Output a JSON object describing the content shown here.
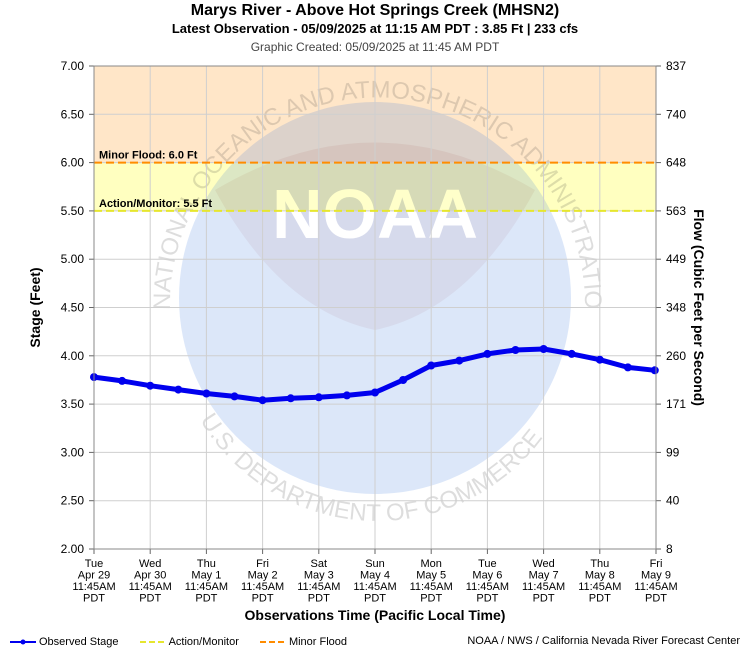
{
  "header": {
    "title": "Marys River - Above Hot Springs Creek (MHSN2)",
    "subtitle": "Latest Observation - 05/09/2025 at 11:15 AM PDT : 3.85 Ft | 233 cfs",
    "created": "Graphic Created: 05/09/2025 at 11:45 AM PDT"
  },
  "watermark": {
    "agency": "NATIONAL OCEANIC AND ATMOSPHERIC ADMINISTRATION",
    "dept": "U.S. DEPARTMENT OF COMMERCE",
    "logo": "NOAA"
  },
  "colors": {
    "observed": "#0000ee",
    "action": "#e6e62e",
    "flood": "#ff8c00",
    "action_band": "#ffffc0",
    "flood_band": "#ffe6c8"
  },
  "chart_data": {
    "type": "line",
    "xlabel": "Observations Time (Pacific Local Time)",
    "ylabel": "Stage (Feet)",
    "y2label": "Flow (Cubic Feet per Second)",
    "ylim": [
      2.0,
      7.0
    ],
    "xlim": [
      "2025-04-29 11:45",
      "2025-05-09 11:45"
    ],
    "y_ticks": [
      "2.00",
      "2.50",
      "3.00",
      "3.50",
      "4.00",
      "4.50",
      "5.00",
      "5.50",
      "6.00",
      "6.50",
      "7.00"
    ],
    "y2_ticks": [
      "8",
      "40",
      "99",
      "171",
      "260",
      "348",
      "449",
      "563",
      "648",
      "740",
      "837"
    ],
    "x_ticks": [
      [
        "Tue",
        "Apr 29",
        "11:45AM",
        "PDT"
      ],
      [
        "Wed",
        "Apr 30",
        "11:45AM",
        "PDT"
      ],
      [
        "Thu",
        "May 1",
        "11:45AM",
        "PDT"
      ],
      [
        "Fri",
        "May 2",
        "11:45AM",
        "PDT"
      ],
      [
        "Sat",
        "May 3",
        "11:45AM",
        "PDT"
      ],
      [
        "Sun",
        "May 4",
        "11:45AM",
        "PDT"
      ],
      [
        "Mon",
        "May 5",
        "11:45AM",
        "PDT"
      ],
      [
        "Tue",
        "May 6",
        "11:45AM",
        "PDT"
      ],
      [
        "Wed",
        "May 7",
        "11:45AM",
        "PDT"
      ],
      [
        "Thu",
        "May 8",
        "11:45AM",
        "PDT"
      ],
      [
        "Fri",
        "May 9",
        "11:45AM",
        "PDT"
      ]
    ],
    "thresholds": [
      {
        "label": "Minor Flood: 6.0 Ft",
        "value": 6.0
      },
      {
        "label": "Action/Monitor: 5.5 Ft",
        "value": 5.5
      }
    ],
    "series": [
      {
        "name": "Observed Stage",
        "x": [
          "2025-04-29 11:45",
          "2025-04-29 23:45",
          "2025-04-30 11:45",
          "2025-04-30 23:45",
          "2025-05-01 11:45",
          "2025-05-01 23:45",
          "2025-05-02 11:45",
          "2025-05-02 23:45",
          "2025-05-03 11:45",
          "2025-05-03 23:45",
          "2025-05-04 11:45",
          "2025-05-04 23:45",
          "2025-05-05 11:45",
          "2025-05-05 23:45",
          "2025-05-06 11:45",
          "2025-05-06 23:45",
          "2025-05-07 11:45",
          "2025-05-07 23:45",
          "2025-05-08 11:45",
          "2025-05-08 23:45",
          "2025-05-09 11:15"
        ],
        "values": [
          3.78,
          3.74,
          3.69,
          3.65,
          3.61,
          3.58,
          3.54,
          3.56,
          3.57,
          3.59,
          3.62,
          3.75,
          3.9,
          3.95,
          4.02,
          4.06,
          4.07,
          4.02,
          3.96,
          3.88,
          3.85
        ]
      }
    ]
  },
  "legend": {
    "observed": "Observed Stage",
    "action": "Action/Monitor",
    "flood": "Minor Flood"
  },
  "credit": "NOAA / NWS / California Nevada River Forecast Center"
}
